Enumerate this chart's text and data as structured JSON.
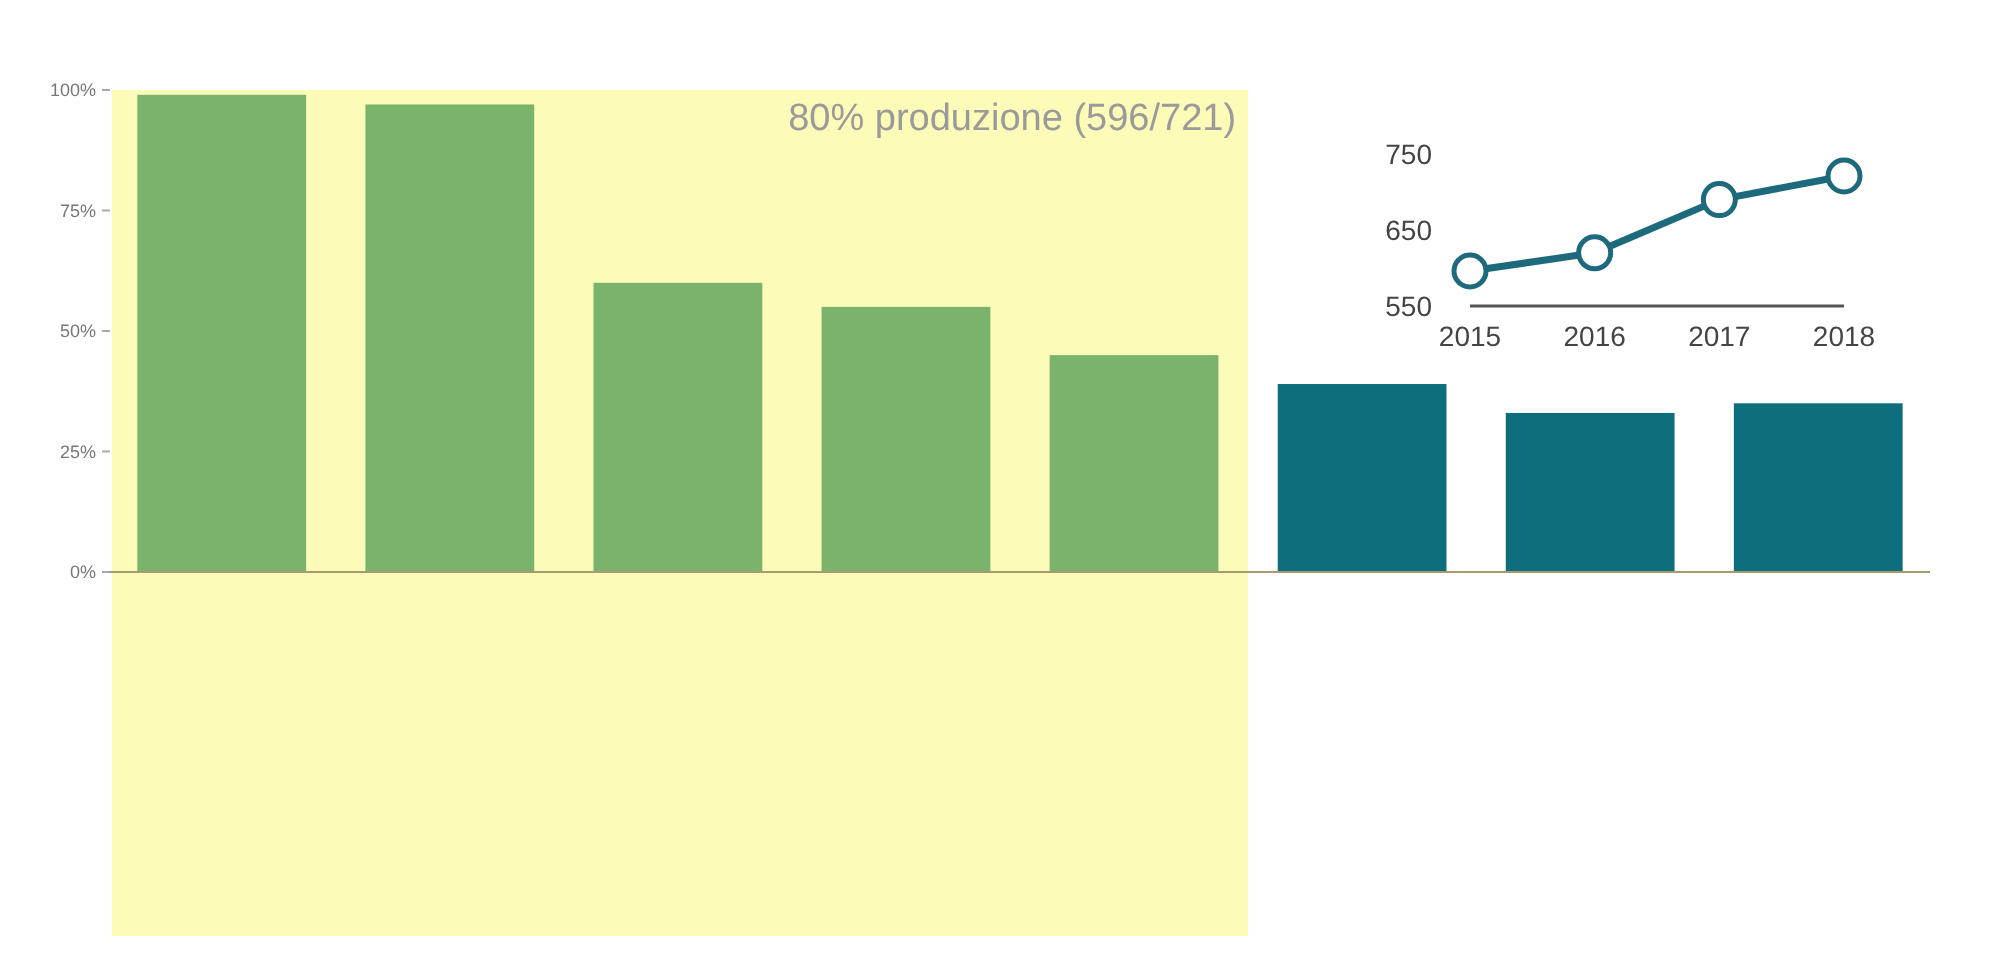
{
  "chart_data": [
    {
      "type": "bar",
      "categories": [
        null,
        null,
        null,
        null,
        null,
        null,
        null,
        null
      ],
      "values": [
        99,
        97,
        60,
        55,
        45,
        39,
        33,
        35
      ],
      "colors": [
        "#7ab36b",
        "#7ab36b",
        "#7ab36b",
        "#7ab36b",
        "#7ab36b",
        "#0f6e7e",
        "#0f6e7e",
        "#0f6e7e"
      ],
      "ylim": [
        0,
        100
      ],
      "yticks": [
        {
          "value": 0,
          "label": "0%"
        },
        {
          "value": 25,
          "label": "25%"
        },
        {
          "value": 50,
          "label": "50%"
        },
        {
          "value": 75,
          "label": "75%"
        },
        {
          "value": 100,
          "label": "100%"
        }
      ],
      "annotations": [
        "80% produzione (596/721)"
      ],
      "grid": false
    },
    {
      "type": "line",
      "x": [
        2015,
        2016,
        2017,
        2018
      ],
      "values": [
        596,
        620,
        690,
        721
      ],
      "color": "#1d6a7c",
      "marker": "circle",
      "xlim": [
        2015,
        2018
      ],
      "xticks": [
        2015,
        2016,
        2017,
        2018
      ],
      "ylim": [
        550,
        750
      ],
      "yticks": [
        550,
        650,
        750
      ]
    }
  ]
}
